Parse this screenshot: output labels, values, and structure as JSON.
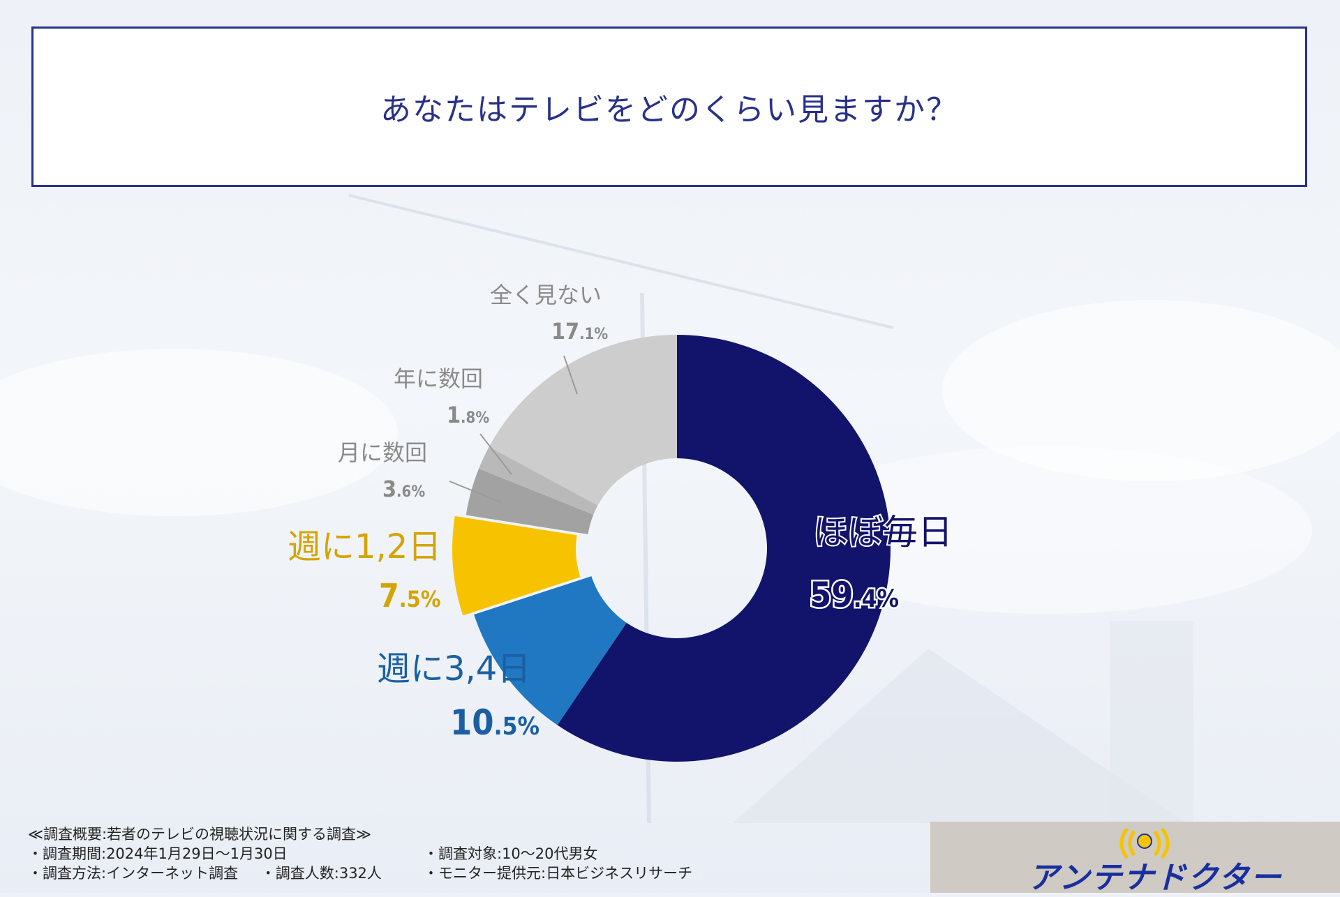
{
  "header": {
    "title": "あなたはテレビをどのくらい見ますか？"
  },
  "chart_data": {
    "type": "pie",
    "subtype": "donut",
    "categories": [
      "ほぼ毎日",
      "週に3,4日",
      "週に1,2日",
      "月に数回",
      "年に数回",
      "全く見ない"
    ],
    "values": [
      59.4,
      10.5,
      7.5,
      3.6,
      1.8,
      17.1
    ],
    "value_labels": [
      "59.4%",
      "10.5%",
      "7.5%",
      "3.6%",
      "1.8%",
      "17.1%"
    ],
    "colors": [
      "#12136b",
      "#1f78c1",
      "#f7c300",
      "#a2a2a2",
      "#b9b9b9",
      "#cdcdcd"
    ],
    "label_colors": [
      "#12136b",
      "#1a5fa3",
      "#d4a400",
      "#8a8a8a",
      "#8a8a8a",
      "#8a8a8a"
    ],
    "start_angle_deg": 0,
    "direction": "clockwise"
  },
  "footer": {
    "survey_title": "≪調査概要:若者のテレビの視聴状況に関する調査≫",
    "period": "・調査期間:2024年1月29日〜1月30日",
    "method": "・調査方法:インターネット調査",
    "respondents": "・調査人数:332人",
    "target": "・調査対象:10〜20代男女",
    "monitor": "・モニター提供元:日本ビジネスリサーチ"
  },
  "logo": {
    "text": "アンテナドクター"
  }
}
